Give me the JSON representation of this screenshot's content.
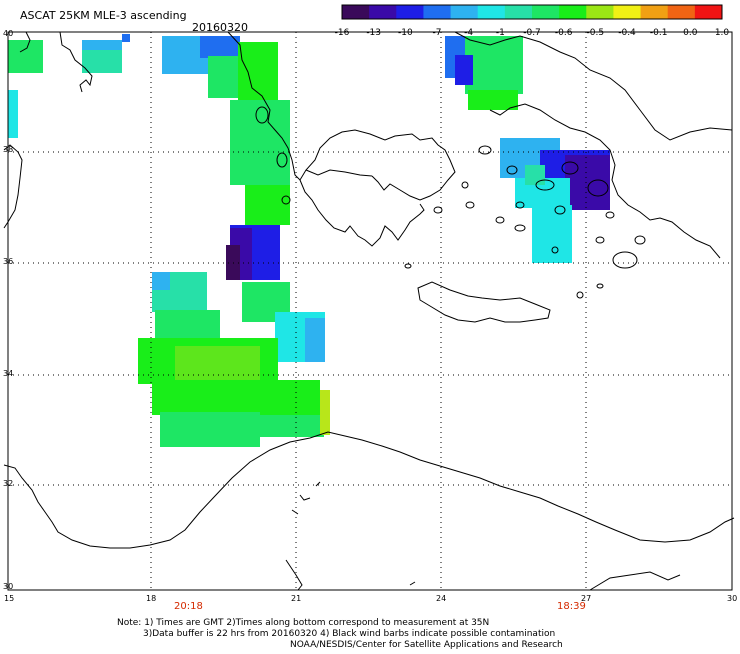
{
  "header": {
    "title": "ASCAT 25KM MLE-3 ascending",
    "date": "20160320"
  },
  "colorbar": {
    "colors": [
      "#3a0a5a",
      "#3a0aa8",
      "#1e1ee6",
      "#1f6ef0",
      "#2eb2f0",
      "#1fe6e6",
      "#27e0a8",
      "#1ee664",
      "#19ee19",
      "#9be615",
      "#f0f015",
      "#f0a014",
      "#f06414",
      "#f01414"
    ],
    "labels": [
      "-16",
      "-13",
      "-10",
      "-7",
      "-4",
      "-1",
      "-0.7",
      "-0.6",
      "-0.5",
      "-0.4",
      "-0.1",
      "0.0",
      "1.0"
    ]
  },
  "map": {
    "lon_labels": [
      "15",
      "18",
      "21",
      "24",
      "27",
      "30"
    ],
    "lat_labels": [
      "40",
      "38",
      "36",
      "34",
      "32",
      "30"
    ],
    "swath_times": [
      {
        "time": "20:18",
        "lon": 19
      },
      {
        "time": "18:39",
        "lon": 26.5
      }
    ]
  },
  "notes": {
    "line1": "Note: 1) Times are GMT 2)Times along bottom correspond to measurement at 35N",
    "line2": "3)Data buffer is 22 hrs from 20160320 4) Black wind barbs indicate possible contamination",
    "line3": "NOAA/NESDIS/Center for Satellite Applications and Research"
  }
}
